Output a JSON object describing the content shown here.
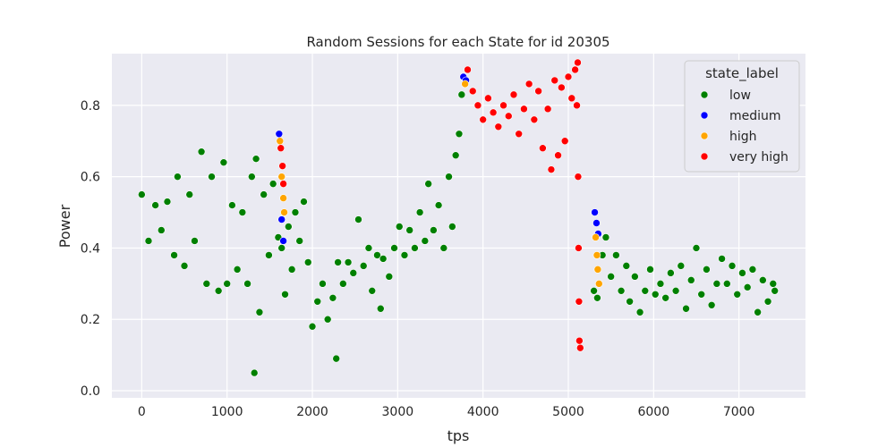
{
  "chart_data": {
    "type": "scatter",
    "title": "Random Sessions for each State for id 20305",
    "xlabel": "tps",
    "ylabel": "Power",
    "xlim": [
      -350,
      7780
    ],
    "ylim": [
      -0.02,
      0.945
    ],
    "x_ticks": [
      0,
      1000,
      2000,
      3000,
      4000,
      5000,
      6000,
      7000
    ],
    "x_tick_labels": [
      "0",
      "1000",
      "2000",
      "3000",
      "4000",
      "5000",
      "6000",
      "7000"
    ],
    "y_ticks": [
      0.0,
      0.2,
      0.4,
      0.6,
      0.8
    ],
    "y_tick_labels": [
      "0.0",
      "0.2",
      "0.4",
      "0.6",
      "0.8"
    ],
    "grid": true,
    "legend": {
      "title": "state_label",
      "position": "top-right",
      "entries": [
        {
          "label": "low",
          "color": "#008000"
        },
        {
          "label": "medium",
          "color": "#0000ff"
        },
        {
          "label": "high",
          "color": "#ffa500"
        },
        {
          "label": "very high",
          "color": "#ff0000"
        }
      ]
    },
    "series": [
      {
        "name": "low",
        "color": "#008000",
        "points": [
          [
            0,
            0.55
          ],
          [
            80,
            0.42
          ],
          [
            160,
            0.52
          ],
          [
            230,
            0.45
          ],
          [
            300,
            0.53
          ],
          [
            380,
            0.38
          ],
          [
            420,
            0.6
          ],
          [
            500,
            0.35
          ],
          [
            560,
            0.55
          ],
          [
            620,
            0.42
          ],
          [
            700,
            0.67
          ],
          [
            760,
            0.3
          ],
          [
            820,
            0.6
          ],
          [
            900,
            0.28
          ],
          [
            960,
            0.64
          ],
          [
            1000,
            0.3
          ],
          [
            1060,
            0.52
          ],
          [
            1120,
            0.34
          ],
          [
            1180,
            0.5
          ],
          [
            1240,
            0.3
          ],
          [
            1290,
            0.6
          ],
          [
            1320,
            0.05
          ],
          [
            1340,
            0.65
          ],
          [
            1380,
            0.22
          ],
          [
            1430,
            0.55
          ],
          [
            1490,
            0.38
          ],
          [
            1540,
            0.58
          ],
          [
            1600,
            0.43
          ],
          [
            1640,
            0.4
          ],
          [
            1680,
            0.27
          ],
          [
            1720,
            0.46
          ],
          [
            1760,
            0.34
          ],
          [
            1800,
            0.5
          ],
          [
            1850,
            0.42
          ],
          [
            1900,
            0.53
          ],
          [
            1950,
            0.36
          ],
          [
            2000,
            0.18
          ],
          [
            2060,
            0.25
          ],
          [
            2120,
            0.3
          ],
          [
            2180,
            0.2
          ],
          [
            2240,
            0.26
          ],
          [
            2280,
            0.09
          ],
          [
            2300,
            0.36
          ],
          [
            2360,
            0.3
          ],
          [
            2420,
            0.36
          ],
          [
            2480,
            0.33
          ],
          [
            2540,
            0.48
          ],
          [
            2600,
            0.35
          ],
          [
            2660,
            0.4
          ],
          [
            2700,
            0.28
          ],
          [
            2760,
            0.38
          ],
          [
            2800,
            0.23
          ],
          [
            2830,
            0.37
          ],
          [
            2900,
            0.32
          ],
          [
            2960,
            0.4
          ],
          [
            3020,
            0.46
          ],
          [
            3080,
            0.38
          ],
          [
            3140,
            0.45
          ],
          [
            3200,
            0.4
          ],
          [
            3260,
            0.5
          ],
          [
            3320,
            0.42
          ],
          [
            3360,
            0.58
          ],
          [
            3420,
            0.45
          ],
          [
            3480,
            0.52
          ],
          [
            3540,
            0.4
          ],
          [
            3600,
            0.6
          ],
          [
            3640,
            0.46
          ],
          [
            3680,
            0.66
          ],
          [
            3720,
            0.72
          ],
          [
            3750,
            0.83
          ],
          [
            5300,
            0.28
          ],
          [
            5340,
            0.26
          ],
          [
            5400,
            0.38
          ],
          [
            5440,
            0.43
          ],
          [
            5500,
            0.32
          ],
          [
            5560,
            0.38
          ],
          [
            5620,
            0.28
          ],
          [
            5680,
            0.35
          ],
          [
            5720,
            0.25
          ],
          [
            5780,
            0.32
          ],
          [
            5840,
            0.22
          ],
          [
            5900,
            0.28
          ],
          [
            5960,
            0.34
          ],
          [
            6020,
            0.27
          ],
          [
            6080,
            0.3
          ],
          [
            6140,
            0.26
          ],
          [
            6200,
            0.33
          ],
          [
            6260,
            0.28
          ],
          [
            6320,
            0.35
          ],
          [
            6380,
            0.23
          ],
          [
            6440,
            0.31
          ],
          [
            6500,
            0.4
          ],
          [
            6560,
            0.27
          ],
          [
            6620,
            0.34
          ],
          [
            6680,
            0.24
          ],
          [
            6740,
            0.3
          ],
          [
            6800,
            0.37
          ],
          [
            6860,
            0.3
          ],
          [
            6920,
            0.35
          ],
          [
            6980,
            0.27
          ],
          [
            7040,
            0.33
          ],
          [
            7100,
            0.29
          ],
          [
            7160,
            0.34
          ],
          [
            7220,
            0.22
          ],
          [
            7280,
            0.31
          ],
          [
            7340,
            0.25
          ],
          [
            7400,
            0.3
          ],
          [
            7420,
            0.28
          ]
        ]
      },
      {
        "name": "medium",
        "color": "#0000ff",
        "points": [
          [
            1610,
            0.72
          ],
          [
            1640,
            0.48
          ],
          [
            1660,
            0.42
          ],
          [
            3770,
            0.88
          ],
          [
            3800,
            0.87
          ],
          [
            5310,
            0.5
          ],
          [
            5330,
            0.47
          ],
          [
            5350,
            0.44
          ]
        ]
      },
      {
        "name": "high",
        "color": "#ffa500",
        "points": [
          [
            1620,
            0.7
          ],
          [
            1640,
            0.6
          ],
          [
            1660,
            0.54
          ],
          [
            1670,
            0.5
          ],
          [
            3790,
            0.86
          ],
          [
            5320,
            0.43
          ],
          [
            5335,
            0.38
          ],
          [
            5345,
            0.34
          ],
          [
            5360,
            0.3
          ]
        ]
      },
      {
        "name": "very high",
        "color": "#ff0000",
        "points": [
          [
            1630,
            0.68
          ],
          [
            1650,
            0.63
          ],
          [
            1660,
            0.58
          ],
          [
            3820,
            0.9
          ],
          [
            3880,
            0.84
          ],
          [
            3940,
            0.8
          ],
          [
            4000,
            0.76
          ],
          [
            4060,
            0.82
          ],
          [
            4120,
            0.78
          ],
          [
            4180,
            0.74
          ],
          [
            4240,
            0.8
          ],
          [
            4300,
            0.77
          ],
          [
            4360,
            0.83
          ],
          [
            4420,
            0.72
          ],
          [
            4480,
            0.79
          ],
          [
            4540,
            0.86
          ],
          [
            4600,
            0.76
          ],
          [
            4650,
            0.84
          ],
          [
            4700,
            0.68
          ],
          [
            4760,
            0.79
          ],
          [
            4800,
            0.62
          ],
          [
            4840,
            0.87
          ],
          [
            4880,
            0.66
          ],
          [
            4920,
            0.85
          ],
          [
            4960,
            0.7
          ],
          [
            5000,
            0.88
          ],
          [
            5040,
            0.82
          ],
          [
            5080,
            0.9
          ],
          [
            5100,
            0.8
          ],
          [
            5110,
            0.92
          ],
          [
            5115,
            0.6
          ],
          [
            5120,
            0.4
          ],
          [
            5125,
            0.25
          ],
          [
            5130,
            0.14
          ],
          [
            5140,
            0.12
          ]
        ]
      }
    ]
  }
}
